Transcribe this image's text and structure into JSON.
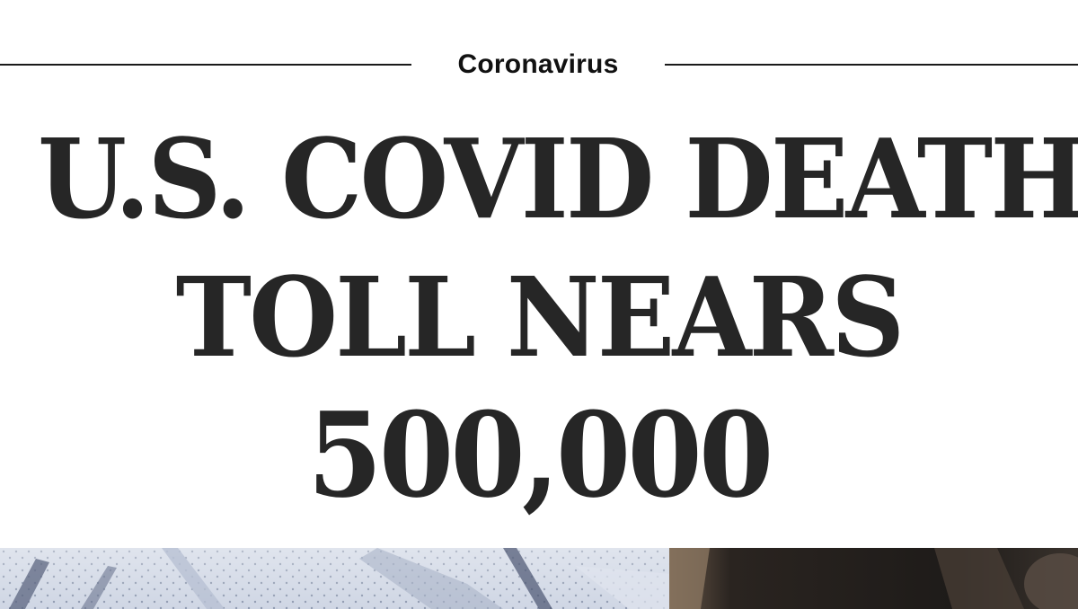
{
  "article": {
    "kicker": "Coronavirus",
    "headline_lines": [
      "U.S. COVID DEATH",
      "TOLL NEARS",
      "500,000"
    ]
  },
  "photo": {
    "description_icon": "photo-strip",
    "colors": {
      "fabric": "#cdd5e3",
      "shadow": "#4d566a",
      "dark": "#2a2622",
      "skin": "#c9a88a"
    }
  }
}
